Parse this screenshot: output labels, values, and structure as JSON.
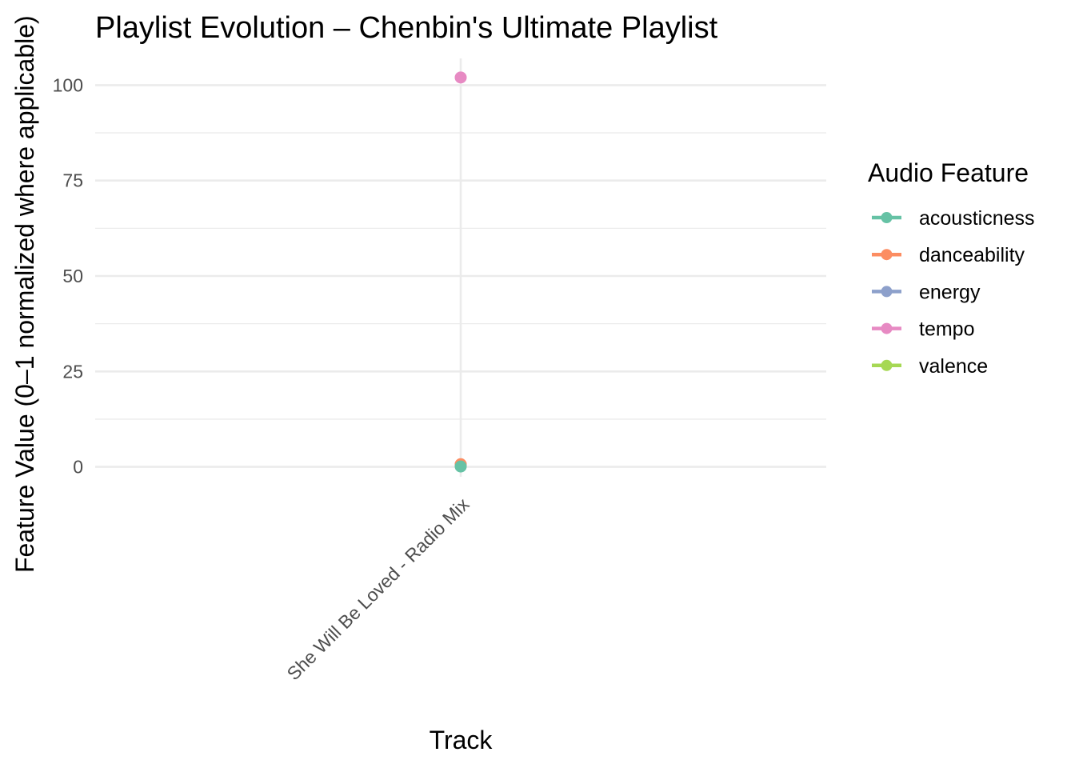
{
  "chart_data": {
    "type": "line",
    "title": "Playlist Evolution – Chenbin's Ultimate Playlist",
    "xlabel": "Track",
    "ylabel": "Feature Value (0–1 normalized where applicable)",
    "categories": [
      "She Will Be Loved - Radio Mix"
    ],
    "ylim": [
      -2.6,
      107
    ],
    "yticks": [
      0,
      25,
      50,
      75,
      100
    ],
    "grid": true,
    "legend": {
      "title": "Audio Feature",
      "placement": "right"
    },
    "series": [
      {
        "name": "acousticness",
        "color": "#66c2a5",
        "values": [
          0.1
        ]
      },
      {
        "name": "danceability",
        "color": "#fc8d62",
        "values": [
          0.7
        ]
      },
      {
        "name": "energy",
        "color": "#8da0cb",
        "values": [
          0.6
        ]
      },
      {
        "name": "tempo",
        "color": "#e78ac3",
        "values": [
          102
        ]
      },
      {
        "name": "valence",
        "color": "#a6d854",
        "values": [
          0.5
        ]
      }
    ]
  }
}
